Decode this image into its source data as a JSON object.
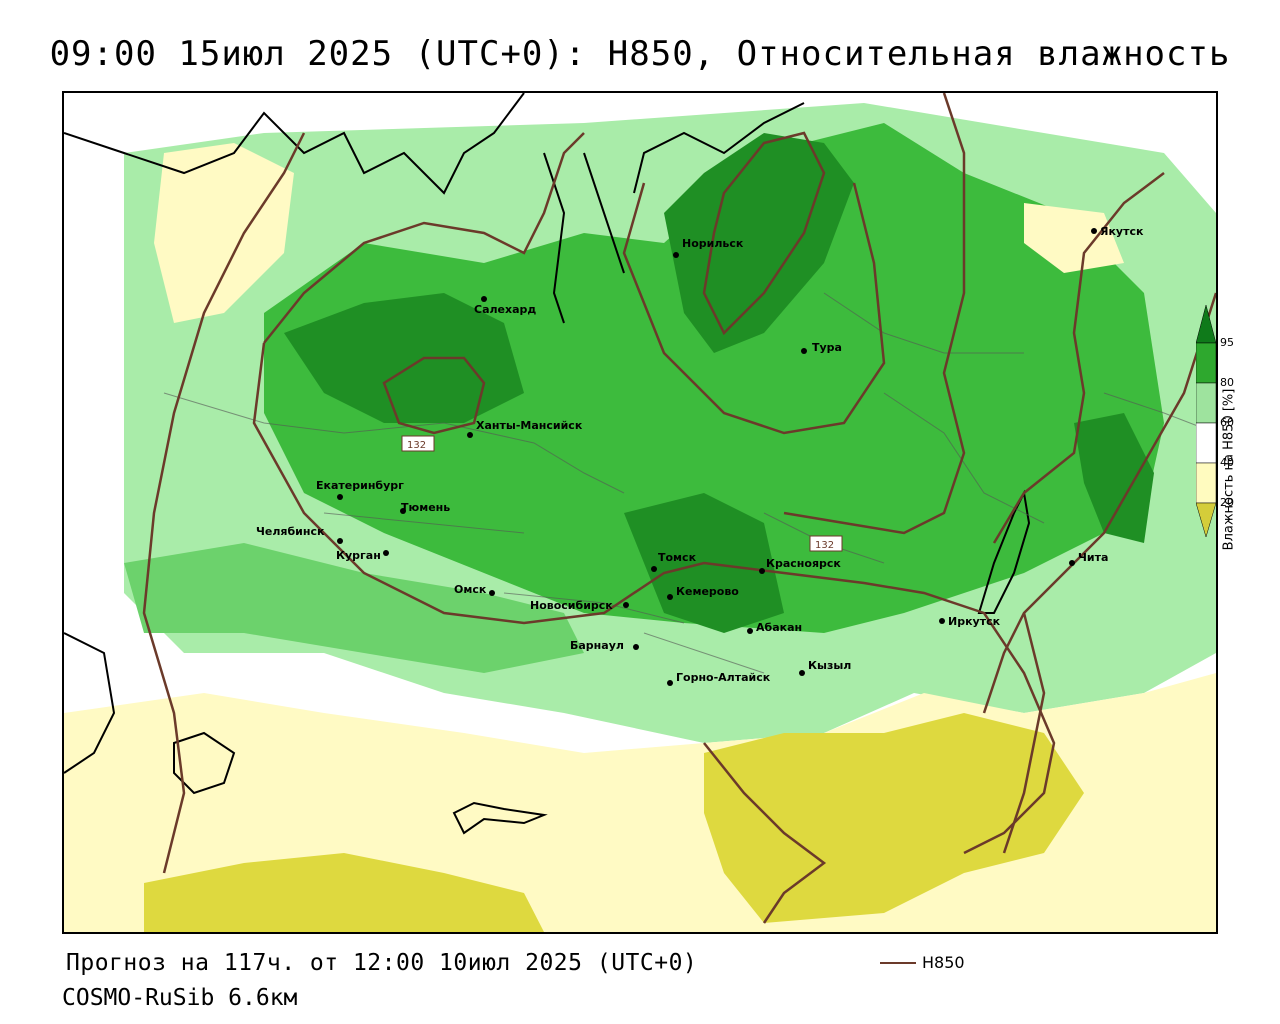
{
  "title": "09:00 15июл 2025 (UTC+0): H850, Относительная влажность",
  "forecast_line": "Прогноз на 117ч. от 12:00 10июл 2025 (UTC+0)",
  "model_line": "COSMO-RuSib 6.6км",
  "contour_series": "H850",
  "contour_labels": [
    "132",
    "132"
  ],
  "legend": {
    "title": "Влажность на H850 [%]",
    "ticks": [
      "95",
      "80",
      "60",
      "40",
      "20"
    ],
    "colors": [
      "#0f7a1a",
      "#2ea82e",
      "#9ee39e",
      "#ffffff",
      "#fffbbf",
      "#d4cd3a"
    ]
  },
  "colors": {
    "contour": "#6b3a2a",
    "dark_green": "#1f8f24",
    "green": "#3dbb3d",
    "light_green": "#a9eca9",
    "pale_yellow": "#fffac4",
    "yellow": "#ded93f"
  },
  "cities": [
    {
      "name": "Якутск"
    },
    {
      "name": "Норильск"
    },
    {
      "name": "Салехард"
    },
    {
      "name": "Тура"
    },
    {
      "name": "Ханты-Мансийск"
    },
    {
      "name": "Екатеринбург"
    },
    {
      "name": "Тюмень"
    },
    {
      "name": "Челябинск"
    },
    {
      "name": "Курган"
    },
    {
      "name": "Томск"
    },
    {
      "name": "Красноярск"
    },
    {
      "name": "Омск"
    },
    {
      "name": "Новосибирск"
    },
    {
      "name": "Кемерово"
    },
    {
      "name": "Абакан"
    },
    {
      "name": "Барнаул"
    },
    {
      "name": "Горно-Алтайск"
    },
    {
      "name": "Кызыл"
    },
    {
      "name": "Иркутск"
    },
    {
      "name": "Чита"
    }
  ]
}
